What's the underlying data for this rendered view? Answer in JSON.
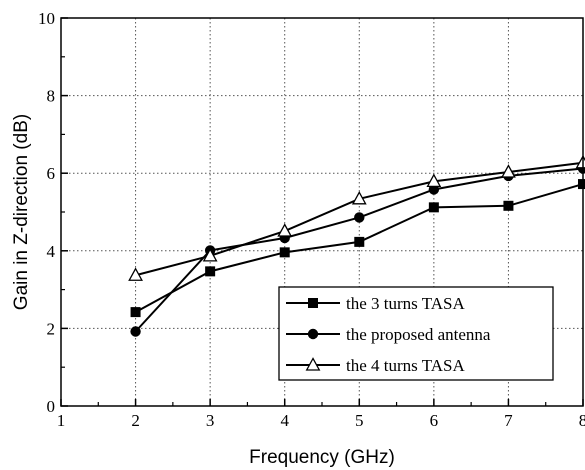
{
  "chart_data": {
    "type": "line",
    "xlabel": "Frequency (GHz)",
    "ylabel": "Gain in Z-direction (dB)",
    "xlim": [
      1,
      8
    ],
    "ylim": [
      0,
      10
    ],
    "xticks": [
      1,
      2,
      3,
      4,
      5,
      6,
      7,
      8
    ],
    "yticks": [
      0,
      2,
      4,
      6,
      8,
      10
    ],
    "grid": true,
    "legend_position": "bottom-right",
    "series": [
      {
        "name": "the 3 turns TASA",
        "marker": "square-filled",
        "x": [
          2,
          3,
          4,
          5,
          6,
          7,
          8
        ],
        "y": [
          2.42,
          3.47,
          3.96,
          4.23,
          5.12,
          5.16,
          5.72
        ]
      },
      {
        "name": "the proposed antenna",
        "marker": "circle-filled",
        "x": [
          2,
          3,
          4,
          5,
          6,
          7,
          8
        ],
        "y": [
          1.92,
          4.01,
          4.33,
          4.86,
          5.58,
          5.93,
          6.12
        ]
      },
      {
        "name": "the 4 turns TASA",
        "marker": "triangle-open",
        "x": [
          2,
          3,
          4,
          5,
          6,
          7,
          8
        ],
        "y": [
          3.37,
          3.87,
          4.51,
          5.34,
          5.79,
          6.03,
          6.27
        ]
      }
    ]
  }
}
